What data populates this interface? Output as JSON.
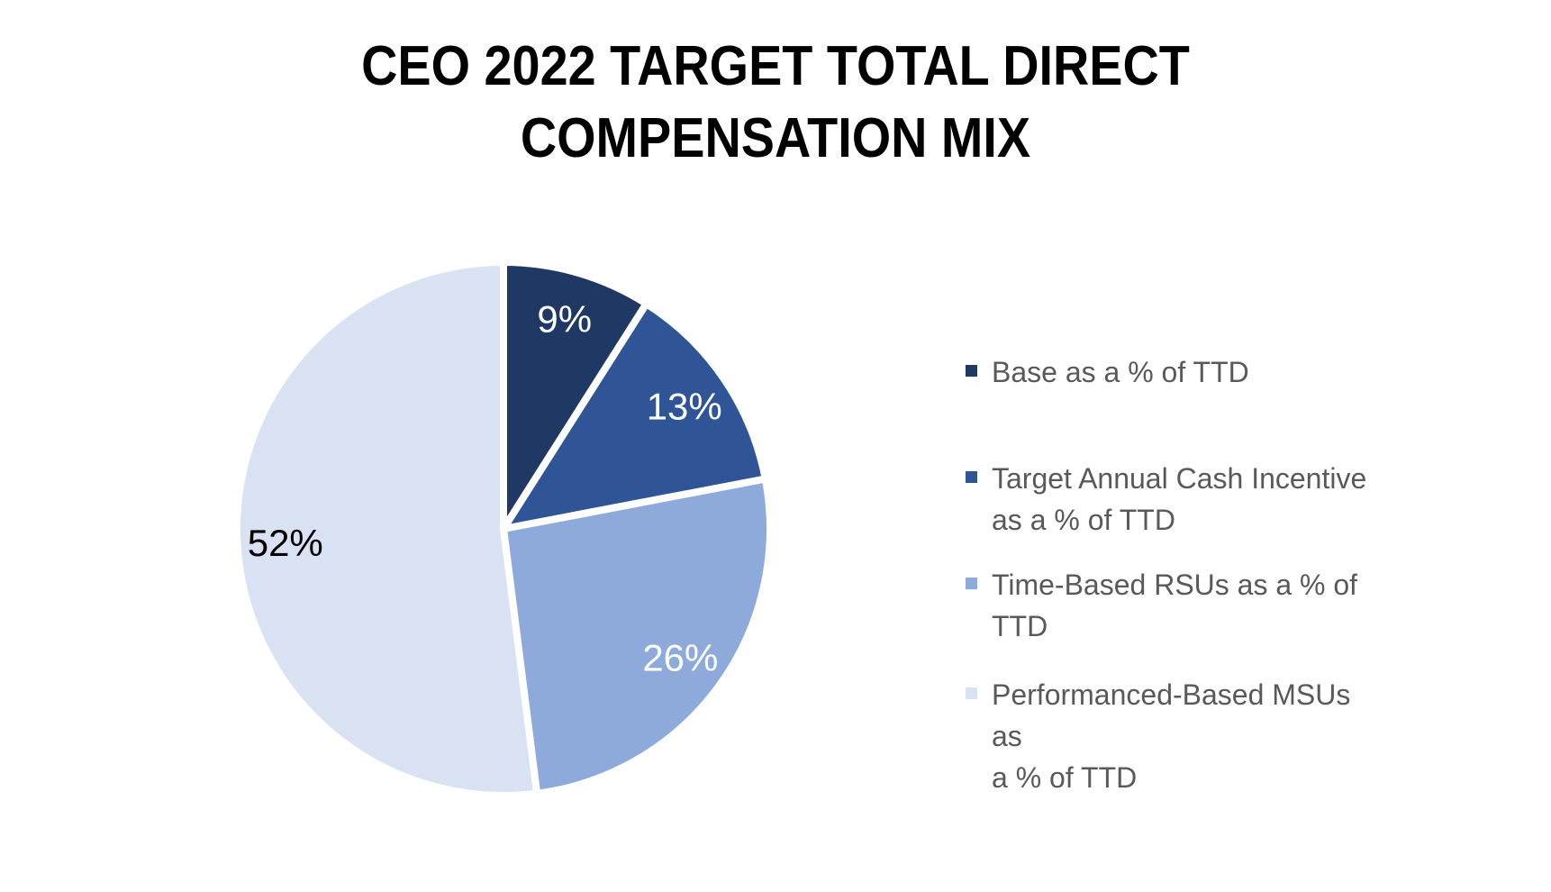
{
  "title": {
    "text": "CEO 2022 TARGET TOTAL DIRECT\nCOMPENSATION MIX"
  },
  "chart_data": {
    "type": "pie",
    "title": "CEO 2022 TARGET TOTAL DIRECT COMPENSATION MIX",
    "labels": [
      "Base as a % of TTD",
      "Target Annual Cash Incentive as a % of TTD",
      "Time-Based RSUs as a % of TTD",
      "Performanced-Based MSUs as a % of TTD"
    ],
    "values": [
      9,
      13,
      26,
      52
    ],
    "data_labels": [
      "9%",
      "13%",
      "26%",
      "52%"
    ],
    "colors": [
      "#1F3864",
      "#2F5597",
      "#8EAADB",
      "#D9E2F3"
    ],
    "data_label_colors": [
      "#FFFFFF",
      "#FFFFFF",
      "#FFFFFF",
      "#000000"
    ],
    "start_angle_deg": 0,
    "direction": "clockwise",
    "slice_border_color": "#FFFFFF",
    "legend_position": "right",
    "legend_text_color": "#595959"
  },
  "legend": {
    "items": [
      {
        "label": "Base as a % of TTD",
        "color": "#1F3864"
      },
      {
        "label": "Target Annual Cash Incentive\nas a % of TTD",
        "color": "#2F5597"
      },
      {
        "label": "Time-Based RSUs as a % of\nTTD",
        "color": "#8EAADB"
      },
      {
        "label": "Performanced-Based MSUs as\na % of TTD",
        "color": "#D9E2F3"
      }
    ]
  }
}
